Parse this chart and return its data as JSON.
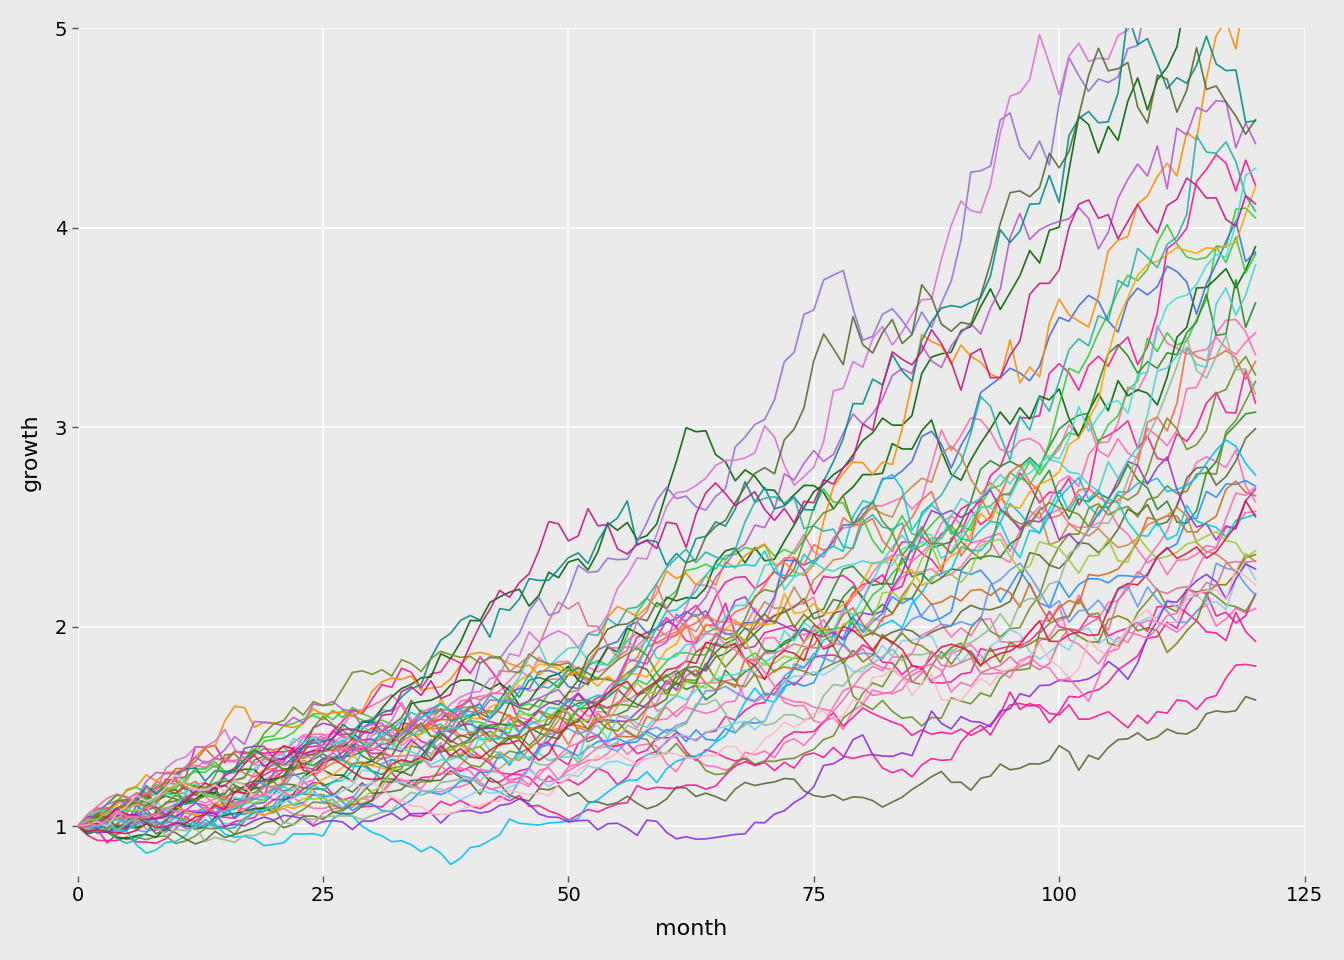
{
  "title": "",
  "xlabel": "month",
  "ylabel": "growth",
  "xlim": [
    0,
    125
  ],
  "ylim": [
    0.75,
    5.0
  ],
  "xticks": [
    0,
    25,
    50,
    75,
    100,
    125
  ],
  "yticks": [
    1,
    2,
    3,
    4,
    5
  ],
  "n_simulations": 50,
  "n_months": 120,
  "seed": 123,
  "monthly_return_mean": 0.009,
  "monthly_return_std": 0.03,
  "background_color": "#EBEBEB",
  "grid_color": "#FFFFFF",
  "line_colors": [
    "#FF1493",
    "#FF69B4",
    "#FF1493",
    "#FF69B4",
    "#FF1493",
    "#FF69B4",
    "#FF1493",
    "#FF69B4",
    "#FF1493",
    "#FF69B4",
    "#228B22",
    "#32CD32",
    "#006400",
    "#6B8E23",
    "#556B2F",
    "#228B22",
    "#32CD32",
    "#006400",
    "#6B8E23",
    "#556B2F",
    "#1E90FF",
    "#4169E1",
    "#00BFFF",
    "#6495ED",
    "#87CEEB",
    "#FF8C00",
    "#FFA500",
    "#FF6347",
    "#D2691E",
    "#CD853F",
    "#9370DB",
    "#8A2BE2",
    "#DA70D6",
    "#BA55D3",
    "#9932CC",
    "#008B8B",
    "#20B2AA",
    "#48D1CC",
    "#00CED1",
    "#40E0D0",
    "#556B2F",
    "#808000",
    "#6B8E23",
    "#9ACD32",
    "#8FBC8F",
    "#DC143C",
    "#C71585",
    "#DB7093",
    "#FFB6C1",
    "#FF69B4"
  ],
  "line_width": 1.2
}
